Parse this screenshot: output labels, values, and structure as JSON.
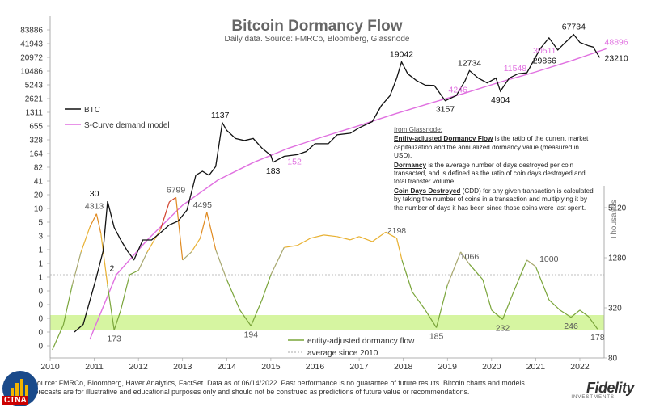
{
  "chart_data": {
    "type": "line",
    "title": "Bitcoin Dormancy Flow",
    "subtitle": "Daily data.  Source: FMRCo, Bloomberg, Glassnode",
    "x_ticks": [
      "2010",
      "2011",
      "2012",
      "2013",
      "2014",
      "2015",
      "2016",
      "2017",
      "2018",
      "2019",
      "2020",
      "2021",
      "2022"
    ],
    "price_axis_ticks": [
      "83886",
      "41943",
      "20972",
      "10486",
      "5243",
      "2621",
      "1311",
      "655",
      "328",
      "164",
      "82",
      "41",
      "20",
      "10",
      "5",
      "3",
      "1",
      "1",
      "1",
      "0",
      "0",
      "0",
      "0",
      "0"
    ],
    "right_axis_ticks": [
      "5120",
      "1280",
      "320",
      "80"
    ],
    "right_axis_label": "Thousands",
    "legend_top": [
      {
        "name": "BTC",
        "color": "#111111"
      },
      {
        "name": "S-Curve demand model",
        "color": "#e070e0"
      }
    ],
    "legend_bottom": [
      {
        "name": "entity-adjusted dormancy flow",
        "color": "#7aa53a"
      },
      {
        "name": "average since 2010",
        "color": "#aaaaaa"
      }
    ],
    "btc_series": {
      "name": "BTC",
      "x": [
        2010.55,
        2010.75,
        2010.9,
        2011.05,
        2011.2,
        2011.3,
        2011.45,
        2011.6,
        2011.75,
        2011.9,
        2012.1,
        2012.3,
        2012.5,
        2012.7,
        2012.9,
        2013.1,
        2013.3,
        2013.45,
        2013.6,
        2013.75,
        2013.9,
        2014.0,
        2014.2,
        2014.4,
        2014.6,
        2014.8,
        2015.0,
        2015.05,
        2015.3,
        2015.6,
        2015.8,
        2016.0,
        2016.3,
        2016.5,
        2016.8,
        2017.0,
        2017.3,
        2017.5,
        2017.7,
        2017.85,
        2017.96,
        2018.1,
        2018.3,
        2018.5,
        2018.7,
        2018.95,
        2019.2,
        2019.4,
        2019.5,
        2019.7,
        2019.9,
        2020.1,
        2020.2,
        2020.4,
        2020.6,
        2020.8,
        2020.95,
        2021.1,
        2021.3,
        2021.5,
        2021.65,
        2021.86,
        2022.0,
        2022.2,
        2022.3,
        2022.45
      ],
      "y": [
        0.07,
        0.1,
        0.3,
        0.9,
        3,
        30,
        9,
        5,
        3,
        2,
        5,
        5,
        7,
        10,
        12,
        20,
        100,
        120,
        100,
        150,
        1137,
        800,
        550,
        500,
        550,
        350,
        250,
        183,
        240,
        260,
        300,
        430,
        430,
        650,
        700,
        900,
        1200,
        2500,
        4000,
        9000,
        19042,
        11000,
        8000,
        6500,
        6400,
        3157,
        4000,
        8000,
        12734,
        9000,
        7200,
        9000,
        4904,
        9000,
        11000,
        11500,
        20000,
        35000,
        58000,
        33000,
        45000,
        67734,
        47000,
        40000,
        38000,
        23210
      ]
    },
    "scurve_series": {
      "name": "S-Curve demand model",
      "x": [
        2010.9,
        2011.5,
        2012.2,
        2013.0,
        2013.8,
        2014.6,
        2015.4,
        2016.2,
        2017.0,
        2017.8,
        2018.6,
        2019.4,
        2020.2,
        2021.0,
        2021.8,
        2022.6
      ],
      "y": [
        0.05,
        1,
        5,
        25,
        80,
        180,
        350,
        600,
        1000,
        1700,
        2800,
        4500,
        7500,
        12000,
        20000,
        35000
      ]
    },
    "dormancy_series": {
      "name": "entity-adjusted dormancy flow",
      "x": [
        2010.05,
        2010.3,
        2010.5,
        2010.7,
        2010.9,
        2011.05,
        2011.15,
        2011.3,
        2011.45,
        2011.6,
        2011.8,
        2012.0,
        2012.2,
        2012.5,
        2012.7,
        2012.85,
        2013.0,
        2013.2,
        2013.4,
        2013.55,
        2013.75,
        2014.0,
        2014.3,
        2014.55,
        2014.8,
        2015.0,
        2015.3,
        2015.6,
        2015.9,
        2016.2,
        2016.5,
        2016.8,
        2017.0,
        2017.3,
        2017.6,
        2017.85,
        2017.97,
        2018.2,
        2018.5,
        2018.75,
        2019.0,
        2019.3,
        2019.5,
        2019.8,
        2020.0,
        2020.25,
        2020.5,
        2020.8,
        2021.0,
        2021.3,
        2021.55,
        2021.8,
        2022.0,
        2022.2,
        2022.4
      ],
      "y": [
        100,
        200,
        600,
        1500,
        3000,
        4313,
        2500,
        600,
        173,
        300,
        800,
        900,
        1500,
        2800,
        6000,
        6799,
        1200,
        1500,
        2200,
        4495,
        1600,
        700,
        300,
        194,
        400,
        800,
        1700,
        1800,
        2200,
        2400,
        2300,
        2100,
        2300,
        2000,
        2600,
        2198,
        1200,
        500,
        300,
        185,
        600,
        1500,
        1066,
        700,
        300,
        232,
        500,
        1200,
        1000,
        400,
        300,
        246,
        300,
        250,
        178
      ]
    },
    "avg_dormancy_value": 800,
    "annotations": [
      {
        "text": "30",
        "x": 2011.0,
        "y": 30,
        "color": "#111111"
      },
      {
        "text": "4313",
        "x": 2011.0,
        "y": 4313,
        "color": "#555555"
      },
      {
        "text": "2",
        "x": 2011.4,
        "y": 2,
        "color": "#111111"
      },
      {
        "text": "6799",
        "x": 2012.85,
        "y": 6799,
        "color": "#555555"
      },
      {
        "text": "4495",
        "x": 2013.45,
        "y": 4495,
        "color": "#555555"
      },
      {
        "text": "1137",
        "x": 2013.85,
        "y": 1137,
        "color": "#111111"
      },
      {
        "text": "152",
        "x": 2015.3,
        "y": 152,
        "color": "#e070e0"
      },
      {
        "text": "183",
        "x": 2015.05,
        "y": 183,
        "color": "#111111"
      },
      {
        "text": "19042",
        "x": 2017.96,
        "y": 19042,
        "color": "#111111"
      },
      {
        "text": "2198",
        "x": 2017.85,
        "y": 2198,
        "color": "#555555"
      },
      {
        "text": "4246",
        "x": 2018.95,
        "y": 4246,
        "color": "#e070e0"
      },
      {
        "text": "3157",
        "x": 2018.95,
        "y": 3157,
        "color": "#111111"
      },
      {
        "text": "12734",
        "x": 2019.5,
        "y": 12734,
        "color": "#111111"
      },
      {
        "text": "1066",
        "x": 2019.5,
        "y": 1066,
        "color": "#555555"
      },
      {
        "text": "11548",
        "x": 2020.2,
        "y": 11548,
        "color": "#e070e0"
      },
      {
        "text": "4904",
        "x": 2020.2,
        "y": 4904,
        "color": "#111111"
      },
      {
        "text": "1000",
        "x": 2021.3,
        "y": 1000,
        "color": "#555555"
      },
      {
        "text": "67734",
        "x": 2021.86,
        "y": 67734,
        "color": "#111111"
      },
      {
        "text": "48896",
        "x": 2022.45,
        "y": 48896,
        "color": "#e070e0"
      },
      {
        "text": "30511",
        "x": 2021.2,
        "y": 30511,
        "color": "#e070e0"
      },
      {
        "text": "29866",
        "x": 2021.2,
        "y": 29866,
        "color": "#111111"
      },
      {
        "text": "23210",
        "x": 2022.45,
        "y": 23210,
        "color": "#111111"
      },
      {
        "text": "173",
        "x": 2011.45,
        "y": 173,
        "color": "#555555"
      },
      {
        "text": "194",
        "x": 2014.55,
        "y": 194,
        "color": "#555555"
      },
      {
        "text": "185",
        "x": 2018.75,
        "y": 185,
        "color": "#555555"
      },
      {
        "text": "232",
        "x": 2020.25,
        "y": 232,
        "color": "#555555"
      },
      {
        "text": "246",
        "x": 2021.8,
        "y": 246,
        "color": "#555555"
      },
      {
        "text": "178",
        "x": 2022.4,
        "y": 178,
        "color": "#555555"
      }
    ],
    "highlight_band_color": "#ccf28a"
  },
  "note": {
    "heading": "from Glassnode:",
    "p1_term": "Entity-adjusted Dormancy Flow",
    "p1_text": " is the ratio of the current market capitalization and the annualized dormancy value (measured in USD).",
    "p2_term": "Dormancy",
    "p2_text": " is the average number of days destroyed per coin transacted, and is defined as the ratio of coin days destroyed and total transfer volume.",
    "p3_term": "Coin Days Destroyed",
    "p3_text": " (CDD) for any given transaction is calculated by taking the number of coins in a transaction and multiplying it by the number of days it has been since those coins were last spent."
  },
  "footer": {
    "text": "Source: FMRCo, Bloomberg, Haver Analytics, FactSet. Data as of 06/14/2022. Past performance is no guarantee of future results. Bitcoin charts and models forecasts are for illustrative and educational purposes only and should not be construed as predictions of future value or recommendations."
  },
  "brand": {
    "name": "Fidelity",
    "sub": "INVESTMENTS"
  },
  "logo": {
    "text": "CTNA"
  }
}
